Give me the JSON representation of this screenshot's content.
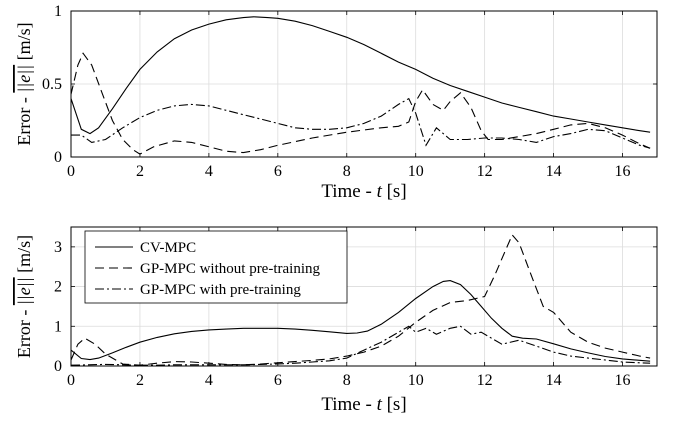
{
  "chart_data": [
    {
      "type": "line",
      "xlabel_prefix": "Time - ",
      "xlabel_var": "t",
      "xlabel_unit": " [s]",
      "ylabel_prefix": "Error - ",
      "ylabel_norm": "||e||",
      "ylabel_unit": " [m/s]",
      "xlim": [
        0,
        17
      ],
      "ylim": [
        0,
        1
      ],
      "xticks": [
        0,
        2,
        4,
        6,
        8,
        10,
        12,
        14,
        16
      ],
      "yticks": [
        0,
        0.5,
        1
      ],
      "ytick_labels": [
        "0",
        "0.5",
        "1"
      ],
      "grid": true,
      "series": [
        {
          "style": "solid",
          "x": [
            0,
            0.3,
            0.55,
            0.8,
            1.2,
            1.6,
            2,
            2.5,
            3,
            3.5,
            4,
            4.5,
            5,
            5.3,
            5.7,
            6,
            6.5,
            7,
            7.5,
            8,
            8.5,
            9,
            9.5,
            10,
            10.5,
            11,
            11.5,
            12,
            12.5,
            13,
            13.5,
            14,
            14.5,
            15,
            15.5,
            16,
            16.5,
            16.8
          ],
          "y": [
            0.4,
            0.19,
            0.16,
            0.2,
            0.33,
            0.47,
            0.6,
            0.72,
            0.81,
            0.87,
            0.91,
            0.94,
            0.955,
            0.96,
            0.955,
            0.95,
            0.93,
            0.9,
            0.86,
            0.82,
            0.77,
            0.71,
            0.65,
            0.6,
            0.54,
            0.49,
            0.45,
            0.41,
            0.37,
            0.34,
            0.31,
            0.28,
            0.26,
            0.24,
            0.22,
            0.2,
            0.18,
            0.17
          ]
        },
        {
          "style": "dashed",
          "x": [
            0,
            0.2,
            0.35,
            0.6,
            0.9,
            1.2,
            1.5,
            1.8,
            2,
            2.4,
            3,
            3.5,
            4,
            4.5,
            5,
            5.5,
            6,
            7,
            8,
            9,
            9.5,
            9.8,
            10,
            10.2,
            10.5,
            10.8,
            11,
            11.3,
            11.6,
            11.9,
            12.1,
            12.5,
            13,
            13.5,
            14,
            14.5,
            15,
            15.5,
            16,
            16.5,
            16.8
          ],
          "y": [
            0.43,
            0.63,
            0.71,
            0.63,
            0.44,
            0.25,
            0.12,
            0.05,
            0.02,
            0.07,
            0.11,
            0.1,
            0.07,
            0.04,
            0.03,
            0.05,
            0.08,
            0.13,
            0.17,
            0.2,
            0.21,
            0.24,
            0.38,
            0.46,
            0.36,
            0.32,
            0.38,
            0.44,
            0.34,
            0.18,
            0.12,
            0.12,
            0.14,
            0.16,
            0.19,
            0.22,
            0.23,
            0.2,
            0.15,
            0.09,
            0.06
          ]
        },
        {
          "style": "dashdot",
          "x": [
            0,
            0.3,
            0.6,
            1,
            1.5,
            2,
            2.5,
            3,
            3.5,
            4,
            4.5,
            5,
            5.5,
            6,
            6.5,
            7,
            7.5,
            8,
            8.5,
            9,
            9.5,
            9.8,
            10,
            10.3,
            10.6,
            11,
            11.5,
            12,
            12.5,
            13,
            13.5,
            14,
            14.5,
            15,
            15.5,
            16,
            16.5,
            16.8
          ],
          "y": [
            0.15,
            0.15,
            0.1,
            0.12,
            0.2,
            0.27,
            0.32,
            0.35,
            0.36,
            0.35,
            0.32,
            0.29,
            0.26,
            0.23,
            0.2,
            0.19,
            0.19,
            0.2,
            0.23,
            0.28,
            0.36,
            0.4,
            0.3,
            0.08,
            0.2,
            0.12,
            0.12,
            0.13,
            0.13,
            0.12,
            0.1,
            0.14,
            0.16,
            0.19,
            0.18,
            0.13,
            0.08,
            0.06
          ]
        }
      ]
    },
    {
      "type": "line",
      "xlabel_prefix": "Time - ",
      "xlabel_var": "t",
      "xlabel_unit": " [s]",
      "ylabel_prefix": "Error - ",
      "ylabel_norm": "||e||",
      "ylabel_unit": " [m/s]",
      "xlim": [
        0,
        17
      ],
      "ylim": [
        0,
        3.5
      ],
      "xticks": [
        0,
        2,
        4,
        6,
        8,
        10,
        12,
        14,
        16
      ],
      "yticks": [
        0,
        1,
        2,
        3
      ],
      "ytick_labels": [
        "0",
        "1",
        "2",
        "3"
      ],
      "grid": true,
      "legend_position": "top-left",
      "series": [
        {
          "name": "CV-MPC",
          "style": "solid",
          "x": [
            0,
            0.3,
            0.55,
            0.8,
            1.2,
            1.6,
            2,
            2.5,
            3,
            3.5,
            4,
            4.5,
            5,
            5.5,
            6,
            6.5,
            7,
            7.5,
            8,
            8.3,
            8.6,
            9,
            9.5,
            10,
            10.5,
            10.8,
            11,
            11.3,
            11.6,
            11.9,
            12.2,
            12.5,
            12.8,
            13.1,
            13.5,
            14,
            14.5,
            15,
            15.5,
            16,
            16.8
          ],
          "y": [
            0.4,
            0.19,
            0.16,
            0.2,
            0.33,
            0.47,
            0.6,
            0.72,
            0.81,
            0.87,
            0.91,
            0.93,
            0.95,
            0.95,
            0.95,
            0.93,
            0.9,
            0.86,
            0.82,
            0.83,
            0.88,
            1.05,
            1.35,
            1.7,
            2,
            2.13,
            2.15,
            2.05,
            1.8,
            1.5,
            1.2,
            0.95,
            0.75,
            0.7,
            0.68,
            0.56,
            0.43,
            0.33,
            0.24,
            0.18,
            0.12
          ]
        },
        {
          "name": "GP-MPC without pre-training",
          "style": "dashed",
          "x": [
            0,
            0.2,
            0.4,
            0.7,
            1,
            1.5,
            2,
            2.5,
            3,
            3.5,
            4,
            4.5,
            5,
            5.5,
            6,
            6.5,
            7,
            7.5,
            8,
            8.5,
            9,
            9.5,
            10,
            10.5,
            11,
            11.5,
            12,
            12.3,
            12.6,
            12.8,
            13,
            13.3,
            13.7,
            14,
            14.5,
            15,
            15.5,
            16,
            16.5,
            16.8
          ],
          "y": [
            0.15,
            0.55,
            0.7,
            0.55,
            0.3,
            0.05,
            0.02,
            0.07,
            0.11,
            0.1,
            0.07,
            0.04,
            0.03,
            0.05,
            0.08,
            0.11,
            0.14,
            0.18,
            0.25,
            0.35,
            0.5,
            0.75,
            1.1,
            1.4,
            1.6,
            1.65,
            1.75,
            2.3,
            2.9,
            3.3,
            3.1,
            2.4,
            1.5,
            1.35,
            0.85,
            0.6,
            0.45,
            0.35,
            0.25,
            0.2
          ]
        },
        {
          "name": "GP-MPC with pre-training",
          "style": "dashdot",
          "x": [
            0,
            0.5,
            1,
            1.5,
            2,
            2.5,
            3,
            3.5,
            4,
            4.5,
            5,
            5.5,
            6,
            6.5,
            7,
            7.5,
            8,
            8.5,
            9,
            9.5,
            9.8,
            10,
            10.3,
            10.6,
            11,
            11.3,
            11.6,
            11.9,
            12.2,
            12.5,
            13,
            13.5,
            14,
            14.5,
            15,
            15.5,
            16,
            16.5,
            16.8
          ],
          "y": [
            0.02,
            0.03,
            0.04,
            0.03,
            0.02,
            0.02,
            0.03,
            0.03,
            0.03,
            0.03,
            0.03,
            0.04,
            0.05,
            0.07,
            0.1,
            0.13,
            0.2,
            0.4,
            0.6,
            0.85,
            1.0,
            0.85,
            0.95,
            0.8,
            0.95,
            1.0,
            0.8,
            0.85,
            0.7,
            0.55,
            0.65,
            0.5,
            0.35,
            0.25,
            0.2,
            0.15,
            0.1,
            0.08,
            0.07
          ]
        }
      ]
    }
  ]
}
